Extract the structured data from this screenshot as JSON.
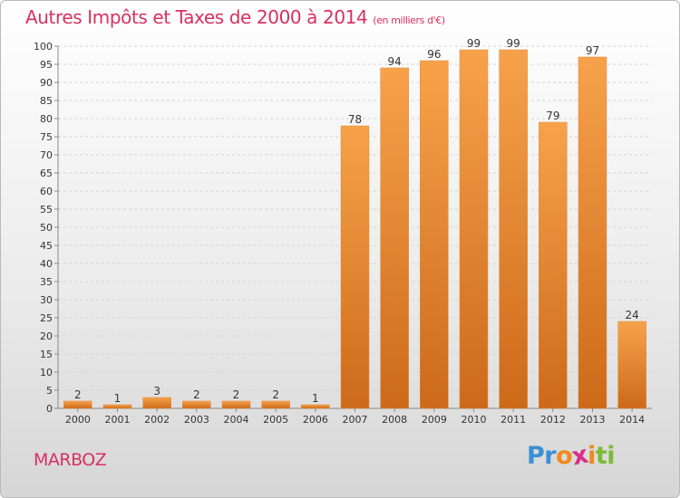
{
  "header": {
    "title": "Autres Impôts et Taxes de 2000 à 2014",
    "subtitle": "(en milliers d'€)"
  },
  "commune": "MARBOZ",
  "brand": {
    "letters": [
      "P",
      "r",
      "o",
      "x",
      "i",
      "t",
      "i"
    ],
    "colors": [
      "#3a8fd6",
      "#3a8fd6",
      "#f08a1e",
      "#d92e8a",
      "#f08a1e",
      "#7bbb33",
      "#7bbb33"
    ]
  },
  "colors": {
    "bar_light": "#f7a24b",
    "bar_dark": "#cc6a1a",
    "title": "#d9305f",
    "grid": "#d4d4d4"
  },
  "chart_data": {
    "type": "bar",
    "title": "Autres Impôts et Taxes de 2000 à 2014",
    "subtitle": "(en milliers d'€)",
    "categories": [
      "2000",
      "2001",
      "2002",
      "2003",
      "2004",
      "2005",
      "2006",
      "2007",
      "2008",
      "2009",
      "2010",
      "2011",
      "2012",
      "2013",
      "2014"
    ],
    "values": [
      2,
      1,
      3,
      2,
      2,
      2,
      1,
      78,
      94,
      96,
      99,
      99,
      79,
      97,
      24
    ],
    "ylim": [
      0,
      100
    ],
    "yticks": [
      0,
      5,
      10,
      15,
      20,
      25,
      30,
      35,
      40,
      45,
      50,
      55,
      60,
      65,
      70,
      75,
      80,
      85,
      90,
      95,
      100
    ],
    "grid": true,
    "data_labels": true
  }
}
